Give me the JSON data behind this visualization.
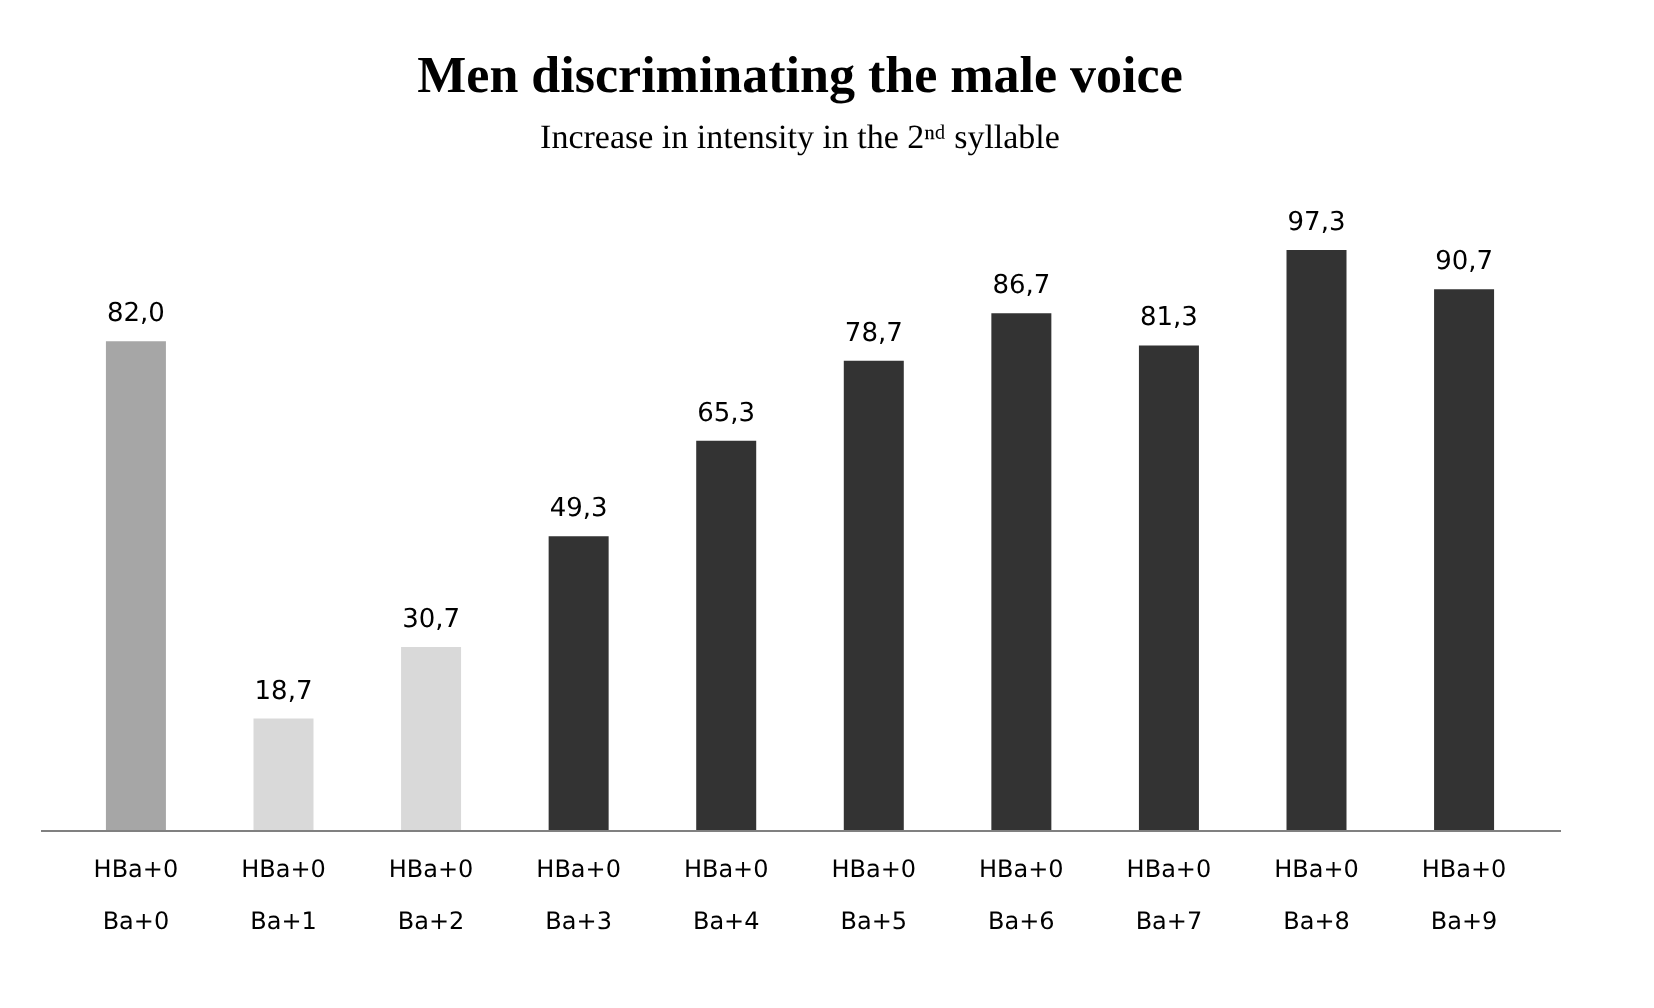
{
  "chart_data": {
    "type": "bar",
    "title": "Men discriminating  the male voice",
    "subtitle": "Increase in intensity in the 2ⁿᵈ syllable",
    "categories": [
      "HBa+0\nBa+0",
      "HBa+0\nBa+1",
      "HBa+0\nBa+2",
      "HBa+0\nBa+3",
      "HBa+0\nBa+4",
      "HBa+0\nBa+5",
      "HBa+0\nBa+6",
      "HBa+0\nBa+7",
      "HBa+0\nBa+8",
      "HBa+0\nBa+9"
    ],
    "values": [
      82.0,
      18.7,
      30.7,
      49.3,
      65.3,
      78.7,
      86.7,
      81.3,
      97.3,
      90.7
    ],
    "value_labels": [
      "82,0",
      "18,7",
      "30,7",
      "49,3",
      "65,3",
      "78,7",
      "86,7",
      "81,3",
      "97,3",
      "90,7"
    ],
    "colors": [
      "#a6a6a6",
      "#d9d9d9",
      "#d9d9d9",
      "#333333",
      "#333333",
      "#333333",
      "#333333",
      "#333333",
      "#333333",
      "#333333"
    ],
    "grid": false
  }
}
